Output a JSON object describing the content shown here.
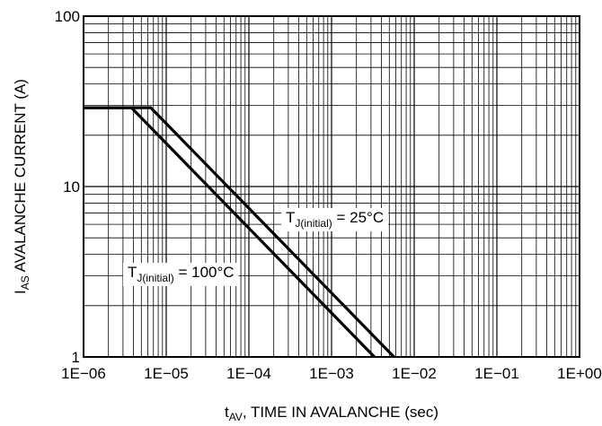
{
  "chart_data": {
    "type": "line",
    "xlabel": {
      "main": "t",
      "sub": "AV",
      "rest": ", TIME IN AVALANCHE (sec)"
    },
    "ylabel": {
      "main": "I",
      "sub": "AS",
      "rest": " AVALANCHE CURRENT (A)"
    },
    "x_scale": "log",
    "y_scale": "log",
    "xlim": [
      1e-06,
      1
    ],
    "ylim": [
      1,
      100
    ],
    "grid": true,
    "x_ticks": [
      {
        "value": 1e-06,
        "label": "1E−06"
      },
      {
        "value": 1e-05,
        "label": "1E−05"
      },
      {
        "value": 0.0001,
        "label": "1E−04"
      },
      {
        "value": 0.001,
        "label": "1E−03"
      },
      {
        "value": 0.01,
        "label": "1E−02"
      },
      {
        "value": 0.1,
        "label": "1E−01"
      },
      {
        "value": 1,
        "label": "1E+00"
      }
    ],
    "y_ticks": [
      {
        "value": 1,
        "label": "1"
      },
      {
        "value": 10,
        "label": "10"
      },
      {
        "value": 100,
        "label": "100"
      }
    ],
    "series": [
      {
        "name": {
          "main": "T",
          "sub": "J(initial)",
          "rest": " = 25°C"
        },
        "color": "#000000",
        "points": [
          [
            1e-06,
            29
          ],
          [
            6.5e-06,
            29
          ],
          [
            0.0057,
            1
          ]
        ]
      },
      {
        "name": {
          "main": "T",
          "sub": "J(initial)",
          "rest": " = 100°C"
        },
        "color": "#000000",
        "points": [
          [
            1e-06,
            29
          ],
          [
            3.8e-06,
            29
          ],
          [
            0.0033,
            1
          ]
        ]
      }
    ]
  }
}
